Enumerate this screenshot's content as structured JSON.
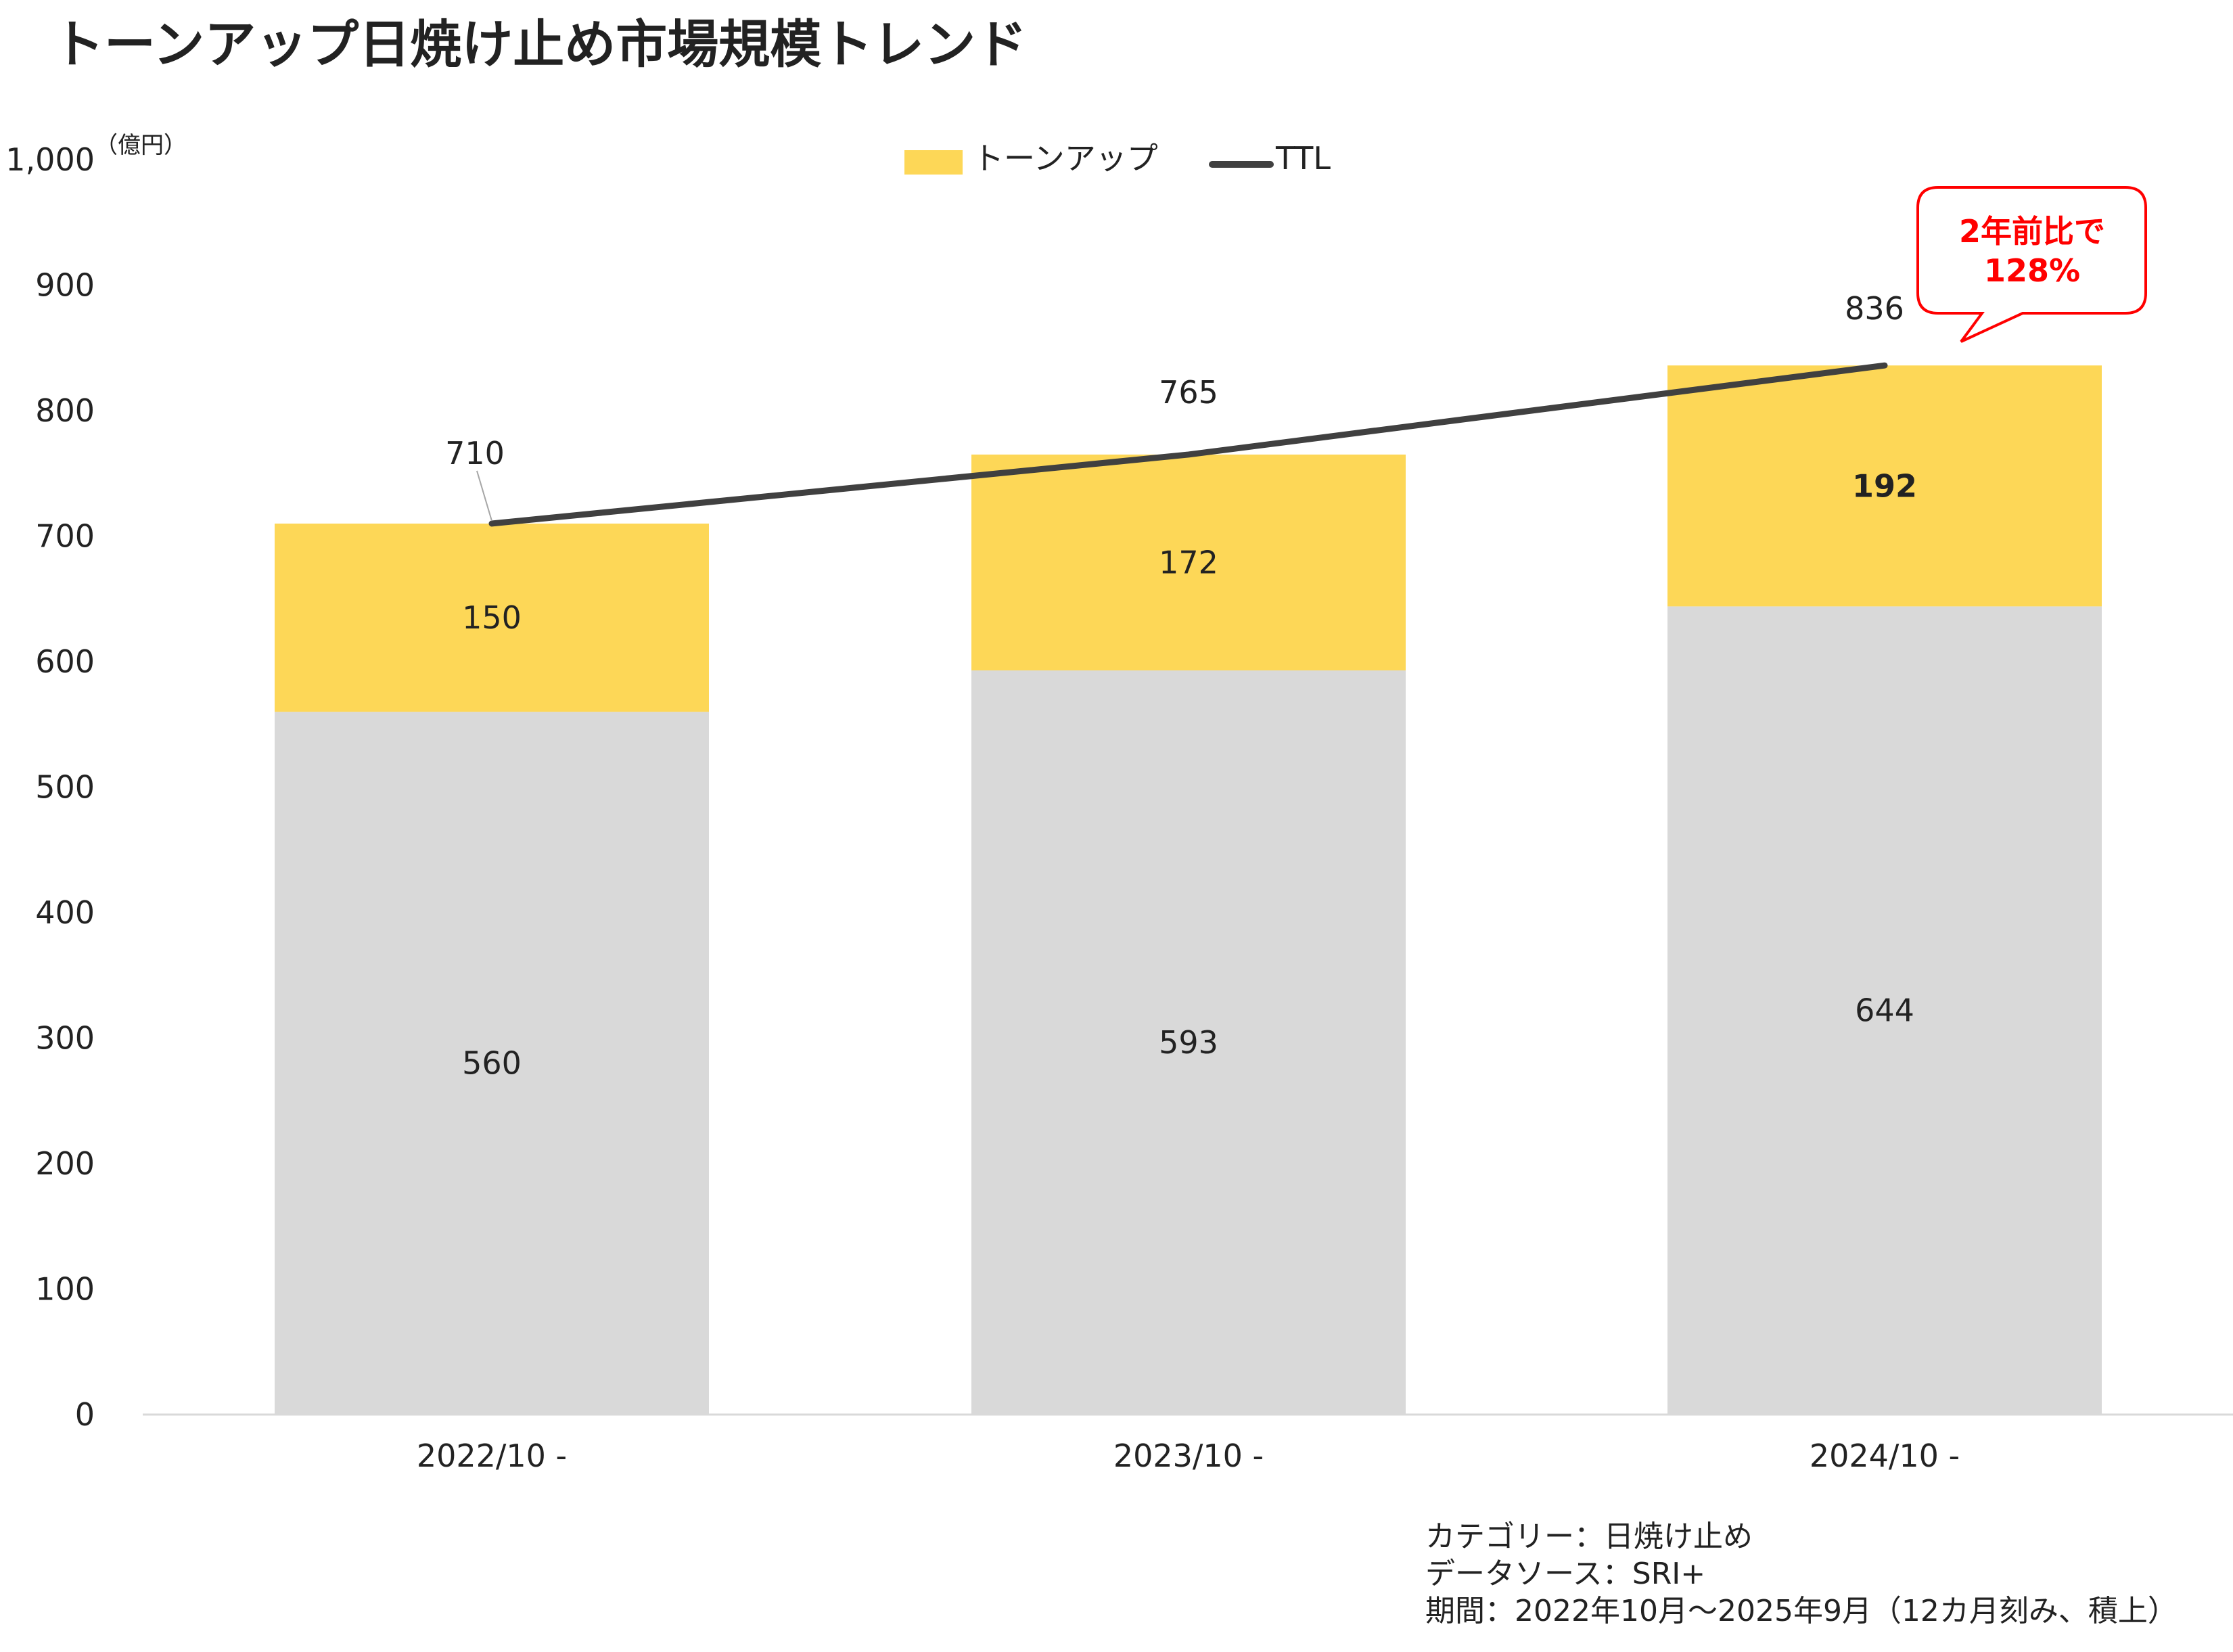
{
  "title": "トーンアップ日焼け止め市場規模トレンド",
  "unit_label": "（億円）",
  "chart_data": {
    "type": "bar",
    "stacked": true,
    "categories": [
      "2022/10 -",
      "2023/10 -",
      "2024/10 -"
    ],
    "series": [
      {
        "name": "",
        "type": "bar",
        "values": [
          560,
          593,
          644
        ],
        "color": "#D9D9D9"
      },
      {
        "name": "トーンアップ",
        "type": "bar",
        "values": [
          150,
          172,
          192
        ],
        "color": "#FDD757"
      },
      {
        "name": "TTL",
        "type": "line",
        "values": [
          710,
          765,
          836
        ],
        "color": "#404040"
      }
    ],
    "ylim": [
      0,
      1000
    ],
    "yticks": [
      0,
      100,
      200,
      300,
      400,
      500,
      600,
      700,
      800,
      900,
      1000
    ],
    "ytick_labels": [
      "0",
      "100",
      "200",
      "300",
      "400",
      "500",
      "600",
      "700",
      "800",
      "900",
      "1,000"
    ],
    "grid": false,
    "legend_position": "top-center",
    "annotation": {
      "lines": [
        "2年前比で",
        "128%"
      ],
      "color": "#FF0000",
      "target_category": "2024/10 -"
    }
  },
  "footnotes": [
    "カテゴリー：日焼け止め",
    "データソース：SRI+",
    "期間：2022年10月～2025年9月（12カ月刻み、積上）"
  ]
}
